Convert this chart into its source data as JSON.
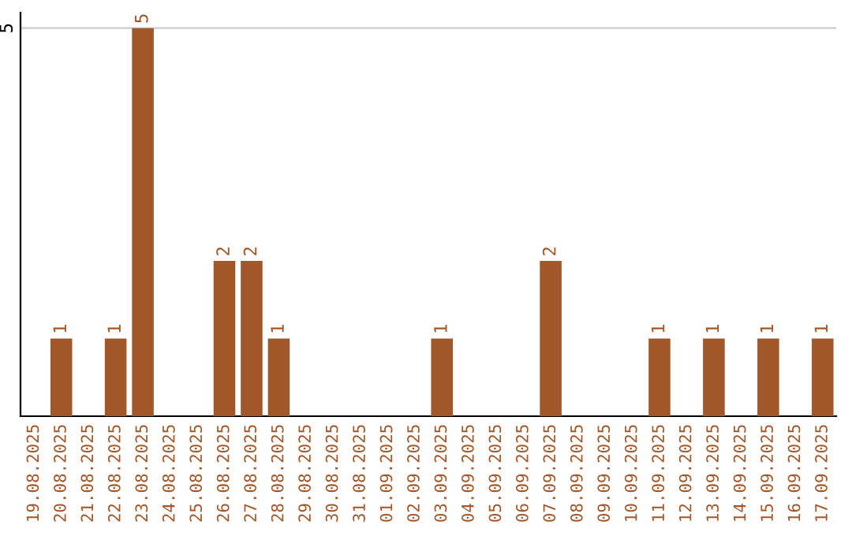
{
  "chart_data": {
    "type": "bar",
    "categories": [
      "19.08.2025",
      "20.08.2025",
      "21.08.2025",
      "22.08.2025",
      "23.08.2025",
      "24.08.2025",
      "25.08.2025",
      "26.08.2025",
      "27.08.2025",
      "28.08.2025",
      "29.08.2025",
      "30.08.2025",
      "31.08.2025",
      "01.09.2025",
      "02.09.2025",
      "03.09.2025",
      "04.09.2025",
      "05.09.2025",
      "06.09.2025",
      "07.09.2025",
      "08.09.2025",
      "09.09.2025",
      "10.09.2025",
      "11.09.2025",
      "12.09.2025",
      "13.09.2025",
      "14.09.2025",
      "15.09.2025",
      "16.09.2025",
      "17.09.2025"
    ],
    "values": [
      0,
      1,
      0,
      1,
      5,
      0,
      0,
      2,
      2,
      1,
      0,
      0,
      0,
      0,
      0,
      1,
      0,
      0,
      0,
      2,
      0,
      0,
      0,
      1,
      0,
      1,
      0,
      1,
      0,
      1
    ],
    "value_labels": [
      null,
      "1",
      null,
      "1",
      "5",
      null,
      null,
      "2",
      "2",
      "1",
      null,
      null,
      null,
      null,
      null,
      "1",
      null,
      null,
      null,
      "2",
      null,
      null,
      null,
      "1",
      null,
      "1",
      null,
      "1",
      null,
      "1"
    ],
    "color": "#a0582a",
    "ylim": [
      0,
      5.2
    ],
    "yticks": [
      5
    ],
    "grid": "y"
  }
}
